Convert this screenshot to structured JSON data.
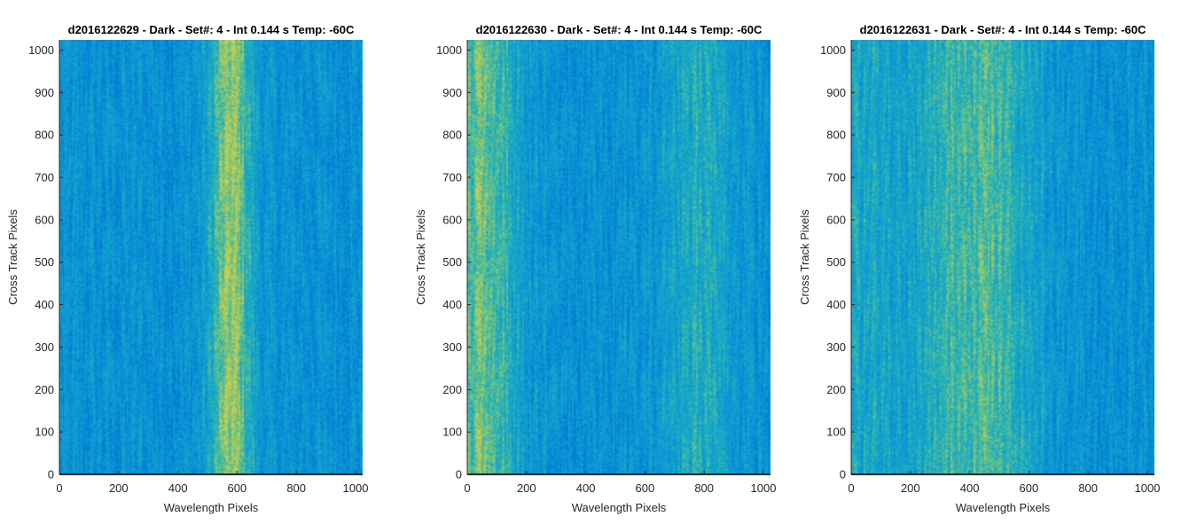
{
  "chart_data": [
    {
      "type": "heatmap",
      "title": "d2016122629 - Dark - Set#: 4 - Int 0.144 s Temp: -60C",
      "xlabel": "Wavelength Pixels",
      "ylabel": "Cross Track Pixels",
      "xlim": [
        0,
        1024
      ],
      "ylim": [
        0,
        1024
      ],
      "xticks": [
        0,
        200,
        400,
        600,
        800,
        1000
      ],
      "yticks": [
        0,
        100,
        200,
        300,
        400,
        500,
        600,
        700,
        800,
        900,
        1000
      ],
      "colormap": "parula",
      "bright_bands": [
        {
          "center": 580,
          "width": 70,
          "strength": 0.55
        }
      ]
    },
    {
      "type": "heatmap",
      "title": "d2016122630 - Dark - Set#: 4 - Int 0.144 s Temp: -60C",
      "xlabel": "Wavelength Pixels",
      "ylabel": "Cross Track Pixels",
      "xlim": [
        0,
        1024
      ],
      "ylim": [
        0,
        1024
      ],
      "xticks": [
        0,
        200,
        400,
        600,
        800,
        1000
      ],
      "yticks": [
        0,
        100,
        200,
        300,
        400,
        500,
        600,
        700,
        800,
        900,
        1000
      ],
      "colormap": "parula",
      "bright_bands": [
        {
          "center": 60,
          "width": 110,
          "strength": 0.45
        },
        {
          "center": 780,
          "width": 120,
          "strength": 0.25
        }
      ]
    },
    {
      "type": "heatmap",
      "title": "d2016122631 - Dark - Set#: 4 - Int 0.144 s Temp: -60C",
      "xlabel": "Wavelength Pixels",
      "ylabel": "Cross Track Pixels",
      "xlim": [
        0,
        1024
      ],
      "ylim": [
        0,
        1024
      ],
      "xticks": [
        0,
        200,
        400,
        600,
        800,
        1000
      ],
      "yticks": [
        0,
        100,
        200,
        300,
        400,
        500,
        600,
        700,
        800,
        900,
        1000
      ],
      "colormap": "parula",
      "bright_bands": [
        {
          "center": 420,
          "width": 200,
          "strength": 0.4
        },
        {
          "center": 60,
          "width": 90,
          "strength": 0.2
        }
      ]
    }
  ]
}
